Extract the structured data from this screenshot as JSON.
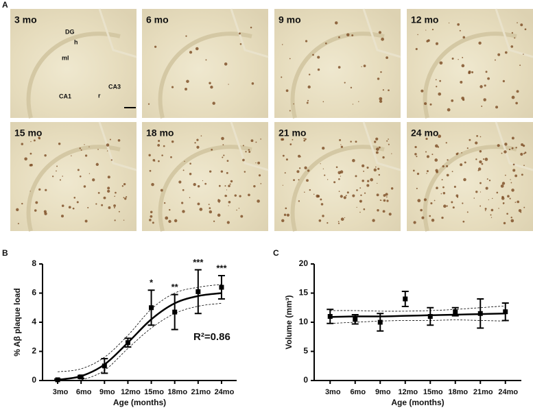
{
  "panel_a": {
    "label": "A",
    "images": [
      {
        "label": "3 mo"
      },
      {
        "label": "6 mo"
      },
      {
        "label": "9 mo"
      },
      {
        "label": "12 mo"
      },
      {
        "label": "15 mo"
      },
      {
        "label": "18 mo"
      },
      {
        "label": "21 mo"
      },
      {
        "label": "24 mo"
      }
    ],
    "regions": [
      "DG",
      "h",
      "ml",
      "CA1",
      "r",
      "CA3"
    ]
  },
  "chart_data": [
    {
      "type": "errorbar",
      "panel": "B",
      "ylabel": "% Aβ plaque load",
      "xlabel": "Age (months)",
      "categories": [
        "3mo",
        "6mo",
        "9mo",
        "12mo",
        "15mo",
        "18mo",
        "21mo",
        "24mo"
      ],
      "values": [
        0.05,
        0.25,
        1.0,
        2.6,
        5.0,
        4.7,
        6.1,
        6.4
      ],
      "errors": [
        0.05,
        0.1,
        0.5,
        0.3,
        1.2,
        1.2,
        1.5,
        0.8
      ],
      "fit": [
        0.05,
        0.3,
        1.1,
        2.6,
        4.2,
        5.3,
        5.8,
        6.0
      ],
      "fit_lower": [
        0,
        0.05,
        0.7,
        2.2,
        3.6,
        4.6,
        5.1,
        5.3
      ],
      "fit_upper": [
        0.6,
        0.8,
        1.6,
        3.1,
        4.9,
        6.0,
        6.4,
        6.6
      ],
      "significance": [
        null,
        null,
        null,
        null,
        "*",
        "**",
        "***",
        "***"
      ],
      "annotation": "R²=0.86",
      "color": "#000000",
      "ylim": [
        0,
        8
      ],
      "yticks": [
        0,
        2,
        4,
        6,
        8
      ]
    },
    {
      "type": "errorbar",
      "panel": "C",
      "ylabel": "Volume (mm³)",
      "xlabel": "Age (months)",
      "categories": [
        "3mo",
        "6mo",
        "9mo",
        "12mo",
        "15mo",
        "18mo",
        "21mo",
        "24mo"
      ],
      "values": [
        11,
        10.5,
        10,
        14,
        11,
        11.8,
        11.5,
        11.8
      ],
      "errors": [
        1.2,
        0.8,
        1.5,
        1.3,
        1.5,
        0.7,
        2.5,
        1.5
      ],
      "fit": [
        10.9,
        11.0,
        11.0,
        11.1,
        11.2,
        11.3,
        11.4,
        11.5
      ],
      "fit_lower": [
        9.8,
        10.0,
        10.2,
        10.3,
        10.3,
        10.4,
        10.3,
        10.2
      ],
      "fit_upper": [
        12.0,
        12.0,
        11.9,
        11.9,
        12.0,
        12.2,
        12.5,
        12.8
      ],
      "color": "#000000",
      "ylim": [
        0,
        20
      ],
      "yticks": [
        0,
        5,
        10,
        15,
        20
      ]
    }
  ]
}
